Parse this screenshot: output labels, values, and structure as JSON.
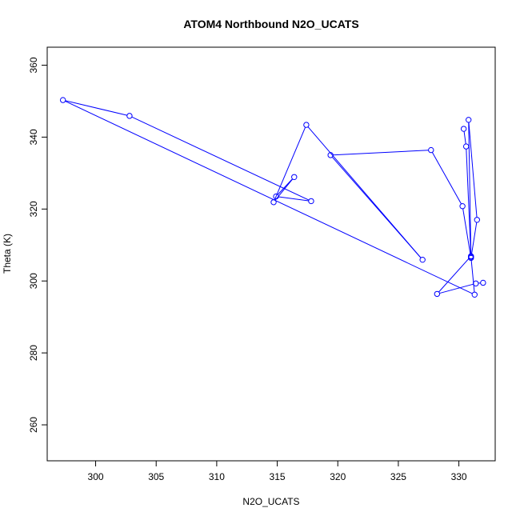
{
  "chart_data": {
    "type": "line",
    "title": "ATOM4 Northbound N2O_UCATS",
    "xlabel": "N2O_UCATS",
    "ylabel": "Theta (K)",
    "xlim": [
      296,
      333
    ],
    "ylim": [
      250,
      365
    ],
    "xticks": [
      300,
      305,
      310,
      315,
      320,
      325,
      330
    ],
    "yticks": [
      260,
      280,
      300,
      320,
      340,
      360
    ],
    "grid": false,
    "line_color": "#0000ff",
    "marker": "open-circle",
    "series": [
      {
        "x": [
          332.0,
          331.4,
          328.2,
          331.0,
          330.8,
          331.5,
          331.0,
          330.3,
          327.7,
          319.4,
          327.0,
          317.4,
          314.7,
          316.4,
          314.9,
          317.8,
          302.8,
          297.3,
          331.3,
          331.0,
          330.6,
          330.4
        ],
        "y": [
          299.5,
          299.3,
          296.4,
          306.9,
          344.8,
          317.0,
          306.4,
          320.8,
          336.4,
          335.0,
          305.9,
          343.4,
          321.9,
          328.9,
          323.5,
          322.2,
          345.9,
          350.3,
          296.2,
          306.7,
          337.4,
          342.3
        ]
      }
    ]
  }
}
